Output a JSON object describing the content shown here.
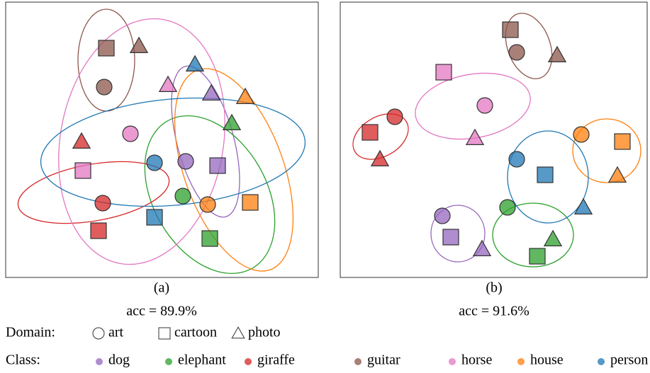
{
  "chart_data": [
    {
      "type": "scatter",
      "caption": "(a)",
      "subtitle": "acc  = 89.9%",
      "xlim": [
        0,
        441
      ],
      "ylim": [
        0,
        389
      ],
      "series": [
        {
          "name": "dog",
          "color": "#9467bd",
          "x": [
            290,
            254,
            299
          ],
          "y": [
            260,
            164,
            158
          ],
          "domain": [
            "photo",
            "art",
            "cartoon"
          ]
        },
        {
          "name": "elephant",
          "color": "#2ca02c",
          "x": [
            319,
            250,
            288
          ],
          "y": [
            218,
            115,
            55
          ],
          "domain": [
            "photo",
            "art",
            "cartoon"
          ]
        },
        {
          "name": "giraffe",
          "color": "#d62728",
          "x": [
            107,
            137,
            131
          ],
          "y": [
            192,
            105,
            66
          ],
          "domain": [
            "photo",
            "art",
            "cartoon"
          ]
        },
        {
          "name": "guitar",
          "color": "#8c564b",
          "x": [
            142,
            188,
            139
          ],
          "y": [
            324,
            327,
            269
          ],
          "domain": [
            "cartoon",
            "photo",
            "art"
          ]
        },
        {
          "name": "horse",
          "color": "#e377c2",
          "x": [
            229,
            176,
            109
          ],
          "y": [
            272,
            203,
            151
          ],
          "domain": [
            "photo",
            "art",
            "cartoon"
          ]
        },
        {
          "name": "house",
          "color": "#ff7f0e",
          "x": [
            338,
            285,
            345
          ],
          "y": [
            255,
            103,
            106
          ],
          "domain": [
            "photo",
            "art",
            "cartoon"
          ]
        },
        {
          "name": "person",
          "color": "#1f77b4",
          "x": [
            267,
            210,
            210
          ],
          "y": [
            301,
            162,
            85
          ],
          "domain": [
            "photo",
            "art",
            "cartoon"
          ]
        }
      ]
    },
    {
      "type": "scatter",
      "caption": "(b)",
      "subtitle": "acc  = 91.6%",
      "xlim": [
        0,
        433
      ],
      "ylim": [
        0,
        389
      ],
      "series": [
        {
          "name": "dog",
          "color": "#9467bd",
          "x": [
            144,
            156,
            200
          ],
          "y": [
            87,
            57,
            40
          ],
          "domain": [
            "art",
            "cartoon",
            "photo"
          ]
        },
        {
          "name": "elephant",
          "color": "#2ca02c",
          "x": [
            236,
            300,
            278
          ],
          "y": [
            99,
            54,
            30
          ],
          "domain": [
            "art",
            "photo",
            "cartoon"
          ]
        },
        {
          "name": "giraffe",
          "color": "#d62728",
          "x": [
            77,
            42,
            56
          ],
          "y": [
            227,
            205,
            167
          ],
          "domain": [
            "art",
            "cartoon",
            "photo"
          ]
        },
        {
          "name": "guitar",
          "color": "#8c564b",
          "x": [
            240,
            249,
            306
          ],
          "y": [
            350,
            318,
            314
          ],
          "domain": [
            "cartoon",
            "art",
            "photo"
          ]
        },
        {
          "name": "horse",
          "color": "#e377c2",
          "x": [
            146,
            204,
            190
          ],
          "y": [
            290,
            243,
            197
          ],
          "domain": [
            "cartoon",
            "art",
            "photo"
          ]
        },
        {
          "name": "house",
          "color": "#ff7f0e",
          "x": [
            340,
            398,
            391
          ],
          "y": [
            202,
            192,
            144
          ],
          "domain": [
            "art",
            "cartoon",
            "photo"
          ]
        },
        {
          "name": "person",
          "color": "#1f77b4",
          "x": [
            249,
            289,
            343
          ],
          "y": [
            167,
            145,
            99
          ],
          "domain": [
            "art",
            "cartoon",
            "photo"
          ]
        }
      ]
    }
  ],
  "legend": {
    "domain_label": "Domain:",
    "domains": [
      "art",
      "cartoon",
      "photo"
    ],
    "class_label": "Class:"
  }
}
